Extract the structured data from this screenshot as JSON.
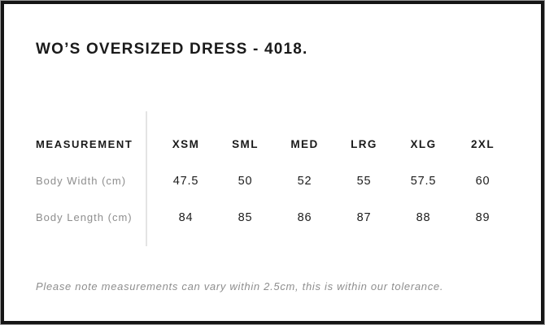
{
  "page": {
    "title": "WO’S OVERSIZED DRESS - 4018.",
    "tolerance_note": "Please note measurements can vary within 2.5cm, this is within our tolerance."
  },
  "table": {
    "measurement_header": "MEASUREMENT",
    "size_headers": [
      "XSM",
      "SML",
      "MED",
      "LRG",
      "XLG",
      "2XL"
    ],
    "rows": [
      {
        "label": "Body Width (cm)",
        "values": [
          "47.5",
          "50",
          "52",
          "55",
          "57.5",
          "60"
        ]
      },
      {
        "label": "Body Length (cm)",
        "values": [
          "84",
          "85",
          "86",
          "87",
          "88",
          "89"
        ]
      }
    ]
  },
  "colors": {
    "text_primary": "#1a1a1a",
    "text_muted": "#8e8e8e",
    "divider": "#e4e4e4",
    "border": "#151515"
  }
}
